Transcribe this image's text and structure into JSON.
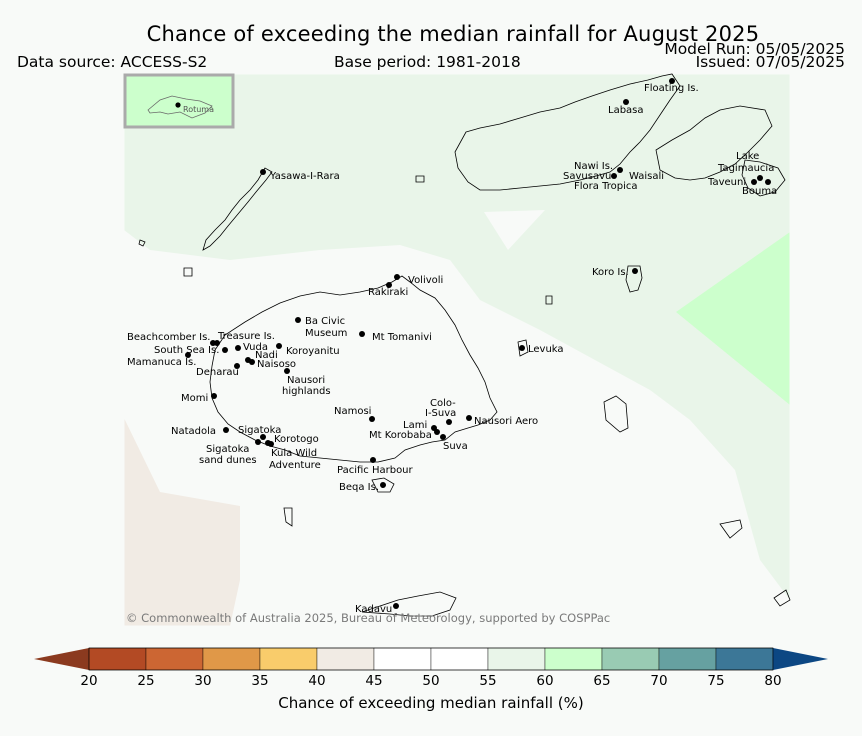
{
  "header": {
    "title": "Chance of exceeding the median rainfall for August 2025",
    "data_source": "Data source: ACCESS-S2",
    "base_period": "Base period: 1981-2018",
    "model_run": "Model Run: 05/05/2025",
    "issued": "Issued: 07/05/2025"
  },
  "inset": {
    "label": "Rotuma"
  },
  "places": {
    "floating": "Floating Is.",
    "labasa": "Labasa",
    "nawi": "Nawi Is.",
    "savusavu": "Savusavu",
    "waisali": "Waisali",
    "flora": "Flora Tropica",
    "lake1": "Lake",
    "lake2": "Tagimaucia",
    "taveuni": "Taveuni",
    "bouma": "Bouma",
    "yasawa": "Yasawa-I-Rara",
    "koro": "Koro Is.",
    "volivoli": "Volivoli",
    "rakiraki": "Rakiraki",
    "ba1": "Ba Civic",
    "ba2": "Museum",
    "tomanivi": "Mt Tomanivi",
    "beachcomber": "Beachcomber Is.",
    "treasure": "Treasure Is.",
    "southsea": "South Sea Is.",
    "vuda": "Vuda",
    "koroyanitu": "Koroyanitu",
    "nadi": "Nadi",
    "mamanuca": "Mamanuca Is.",
    "naisoso": "Naisoso",
    "denarau": "Denarau",
    "nausori_h1": "Nausori",
    "nausori_h2": "highlands",
    "levuka": "Levuka",
    "momi": "Momi",
    "colo1": "Colo-",
    "colo2": "I-Suva",
    "namosi": "Namosi",
    "nausori_aero": "Nausori Aero",
    "lami": "Lami",
    "korobaba": "Mt Korobaba",
    "suva": "Suva",
    "natadola": "Natadola",
    "sigatoka": "Sigatoka",
    "korotogo": "Korotogo",
    "sig_dunes1": "Sigatoka",
    "sig_dunes2": "sand dunes",
    "kula1": "Kula Wild",
    "kula2": "Adventure",
    "pacific": "Pacific Harbour",
    "beqa": "Beqa Is.",
    "kadavu": "Kadavu"
  },
  "copyright": "© Commonwealth of Australia 2025, Bureau of Meteorology, supported by COSPPac",
  "colorbar": {
    "title": "Chance of exceeding median rainfall (%)",
    "ticks": [
      "20",
      "25",
      "30",
      "35",
      "40",
      "45",
      "50",
      "55",
      "60",
      "65",
      "70",
      "75",
      "80"
    ],
    "colors": [
      "#8b3a1f",
      "#b34a24",
      "#cc6633",
      "#e09848",
      "#f9cc6b",
      "#f1ebe4",
      "#ffffff",
      "#ffffff",
      "#e9f5e9",
      "#ccffcc",
      "#99cbb3",
      "#66a1a1",
      "#3c7797",
      "#0c4783"
    ],
    "map_colors": {
      "above_55": "#e9f5e9",
      "above_60": "#ccffcc",
      "below_45": "#f1ebe4",
      "neutral": "#f8faf8"
    }
  }
}
